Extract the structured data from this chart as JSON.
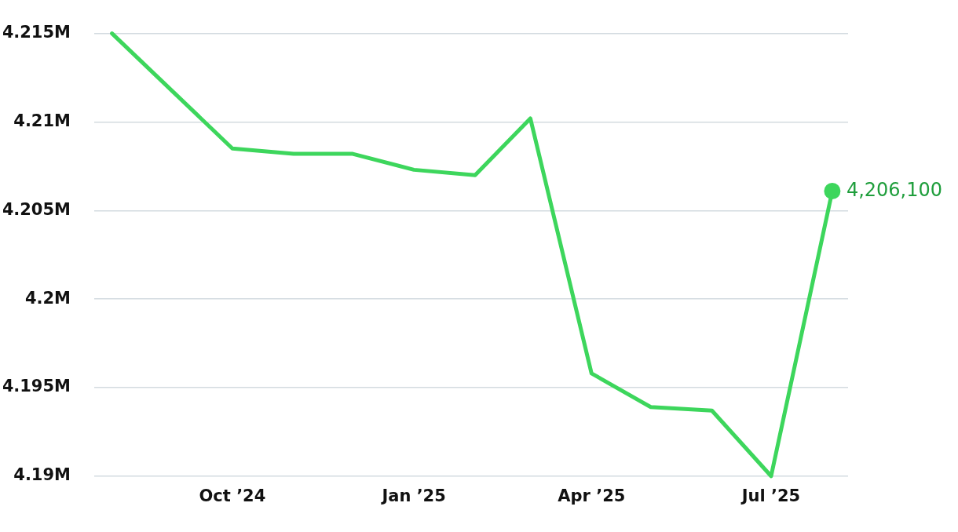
{
  "chart_data": {
    "type": "line",
    "x": [
      "2024-08",
      "2024-09",
      "2024-10",
      "2024-11",
      "2024-12",
      "2025-01",
      "2025-02",
      "2025-03",
      "2025-04",
      "2025-05",
      "2025-06",
      "2025-07",
      "2025-08"
    ],
    "series": [
      {
        "color": "#3dd65c",
        "values": [
          4215000,
          4211700,
          4208500,
          4208200,
          4208200,
          4207300,
          4207000,
          4210200,
          4195800,
          4193900,
          4193700,
          4190000,
          4206100
        ],
        "value_labels": [
          null,
          null,
          null,
          null,
          null,
          null,
          null,
          null,
          null,
          null,
          null,
          null,
          "4,206,100"
        ]
      }
    ],
    "xlim": [
      "2024-07-23",
      "2025-08-09"
    ],
    "xticks": [
      {
        "value": "2024-10",
        "label": "Oct ’24"
      },
      {
        "value": "2025-01",
        "label": "Jan ’25"
      },
      {
        "value": "2025-04",
        "label": "Apr ’25"
      },
      {
        "value": "2025-07",
        "label": "Jul ’25"
      }
    ],
    "ylim": [
      4190000,
      4215000
    ],
    "yticks": [
      {
        "value": 4190000,
        "label": "4.19M"
      },
      {
        "value": 4195000,
        "label": "4.195M"
      },
      {
        "value": 4200000,
        "label": "4.2M"
      },
      {
        "value": 4205000,
        "label": "4.205M"
      },
      {
        "value": 4210000,
        "label": "4.21M"
      },
      {
        "value": 4215000,
        "label": "4.215M"
      }
    ],
    "grid": "y",
    "legend": false,
    "marker": "none",
    "line_style": "solid"
  }
}
